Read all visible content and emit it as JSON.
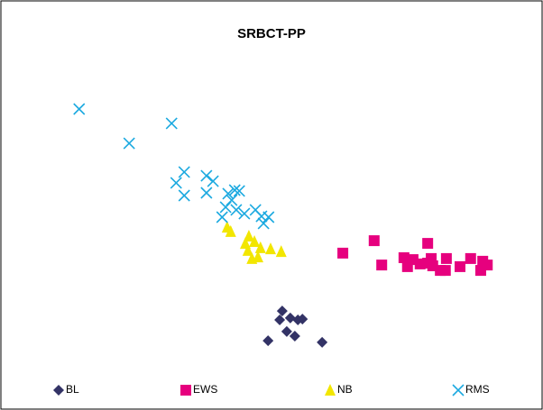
{
  "chart_data": {
    "type": "scatter",
    "title": "SRBCT-PP",
    "xlim": [
      0,
      100
    ],
    "ylim": [
      0,
      100
    ],
    "series": [
      {
        "name": "BL",
        "color": "#333366",
        "marker": "diamond",
        "x": [
          52.3,
          55.4,
          53.9,
          51.8,
          56.3,
          53.2,
          54.8,
          49.5,
          60.2
        ],
        "values": [
          18.3,
          15.0,
          15.7,
          15.0,
          15.3,
          10.7,
          9.0,
          7.3,
          6.7
        ]
      },
      {
        "name": "EWS",
        "color": "#e6007e",
        "marker": "square",
        "x": [
          64.3,
          70.5,
          81.1,
          72.0,
          76.4,
          78.2,
          79.6,
          77.1,
          81.1,
          82.1,
          83.6,
          84.8,
          84.6,
          87.5,
          89.6,
          92.0,
          92.9,
          91.6,
          81.8
        ],
        "values": [
          39.7,
          44.3,
          43.3,
          35.3,
          38.0,
          37.3,
          35.7,
          34.7,
          36.0,
          35.0,
          33.3,
          37.7,
          33.3,
          34.7,
          37.7,
          36.7,
          35.3,
          33.3,
          37.7
        ]
      },
      {
        "name": "NB",
        "color": "#f2e600",
        "marker": "triangle",
        "x": [
          41.4,
          42.1,
          45.7,
          45.0,
          46.8,
          45.5,
          48.0,
          50.0,
          52.1,
          46.3,
          47.5
        ],
        "values": [
          49.3,
          47.7,
          46.0,
          43.3,
          44.0,
          40.7,
          41.7,
          41.3,
          40.3,
          37.7,
          38.3
        ]
      },
      {
        "name": "RMS",
        "color": "#1ba9e0",
        "marker": "x",
        "x": [
          12.1,
          30.4,
          22.0,
          32.9,
          31.3,
          37.3,
          38.6,
          32.9,
          37.3,
          41.6,
          42.9,
          43.8,
          42.3,
          41.1,
          43.2,
          44.8,
          47.0,
          48.2,
          40.4,
          49.6,
          48.6
        ],
        "values": [
          93.0,
          87.7,
          80.3,
          69.7,
          65.7,
          68.3,
          66.3,
          61.0,
          62.0,
          61.7,
          63.0,
          62.7,
          59.3,
          56.7,
          55.7,
          54.3,
          55.7,
          53.3,
          53.0,
          53.0,
          50.7
        ]
      }
    ]
  }
}
